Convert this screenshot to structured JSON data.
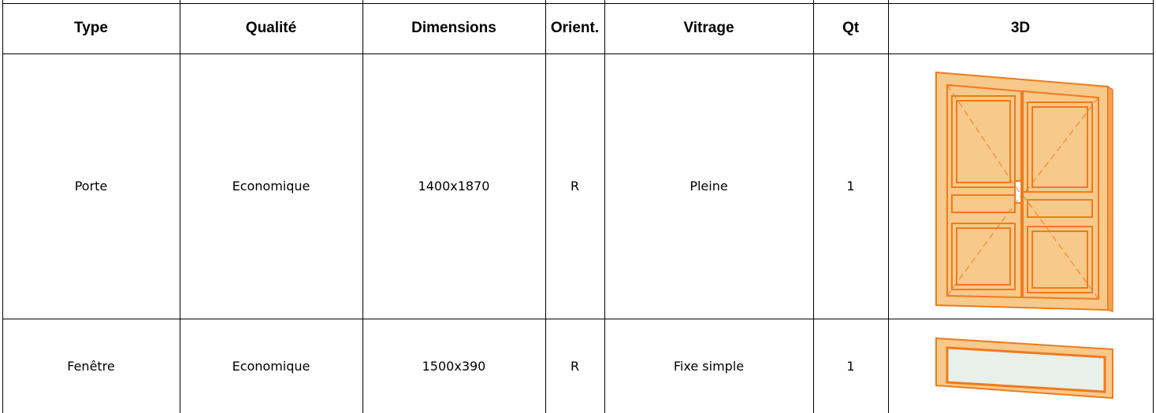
{
  "table": {
    "headers": [
      "Type",
      "Qualité",
      "Dimensions",
      "Orient.",
      "Vitrage",
      "Qt",
      "3D"
    ],
    "rows": [
      [
        "Porte",
        "Economique",
        "1400x1870",
        "R",
        "Pleine",
        "1"
      ],
      [
        "Fenêtre",
        "Economique",
        "1500x390",
        "R",
        "Fixe simple",
        "1"
      ]
    ]
  }
}
